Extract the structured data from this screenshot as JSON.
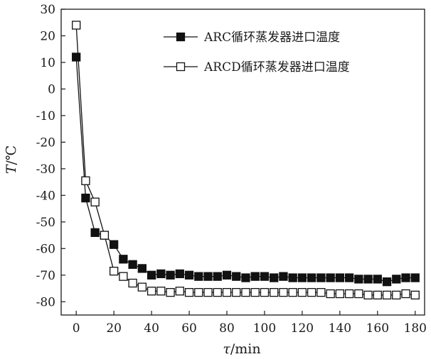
{
  "chart_data": {
    "type": "line",
    "title": "",
    "xlabel_var": "τ",
    "xlabel_unit": "/min",
    "ylabel_var": "T",
    "ylabel_unit": "/℃",
    "xlim": [
      -8,
      185
    ],
    "ylim": [
      -85,
      30
    ],
    "xticks": [
      0,
      20,
      40,
      60,
      80,
      100,
      120,
      140,
      160,
      180
    ],
    "yticks": [
      30,
      20,
      10,
      0,
      -10,
      -20,
      -30,
      -40,
      -50,
      -60,
      -70,
      -80
    ],
    "grid": false,
    "legend_position": "top-right",
    "series": [
      {
        "name": "ARC循环蒸发器进口温度",
        "marker": "filled-square",
        "color": "#111111",
        "x": [
          0,
          5,
          10,
          15,
          20,
          25,
          30,
          35,
          40,
          45,
          50,
          55,
          60,
          65,
          70,
          75,
          80,
          85,
          90,
          95,
          100,
          105,
          110,
          115,
          120,
          125,
          130,
          135,
          140,
          145,
          150,
          155,
          160,
          165,
          170,
          175,
          180
        ],
        "y": [
          12,
          -41,
          -54,
          -55,
          -58.5,
          -64,
          -66,
          -67.5,
          -70,
          -69.5,
          -70,
          -69.5,
          -70,
          -70.5,
          -70.5,
          -70.5,
          -70,
          -70.5,
          -71,
          -70.5,
          -70.5,
          -71,
          -70.5,
          -71,
          -71,
          -71,
          -71,
          -71,
          -71,
          -71,
          -71.5,
          -71.5,
          -71.5,
          -72.5,
          -71.5,
          -71,
          -71
        ]
      },
      {
        "name": "ARCD循环蒸发器进口温度",
        "marker": "open-square",
        "color": "#111111",
        "x": [
          0,
          5,
          10,
          15,
          20,
          25,
          30,
          35,
          40,
          45,
          50,
          55,
          60,
          65,
          70,
          75,
          80,
          85,
          90,
          95,
          100,
          105,
          110,
          115,
          120,
          125,
          130,
          135,
          140,
          145,
          150,
          155,
          160,
          165,
          170,
          175,
          180
        ],
        "y": [
          24,
          -34.5,
          -42.5,
          -55,
          -68.5,
          -70.5,
          -73,
          -74.5,
          -76,
          -76,
          -76.5,
          -76,
          -76.5,
          -76.5,
          -76.5,
          -76.5,
          -76.5,
          -76.5,
          -76.5,
          -76.5,
          -76.5,
          -76.5,
          -76.5,
          -76.5,
          -76.5,
          -76.5,
          -76.5,
          -77,
          -77,
          -77,
          -77,
          -77.5,
          -77.5,
          -77.5,
          -77.5,
          -77,
          -77.5
        ]
      }
    ]
  }
}
